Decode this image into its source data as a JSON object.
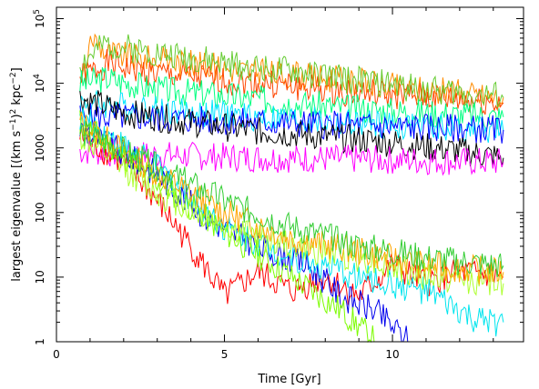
{
  "chart_data": {
    "type": "line",
    "xlabel": "Time [Gyr]",
    "ylabel_parts": {
      "pre": "largest eigenvalue [(km s",
      "exp1": "−1",
      "mid": ")",
      "exp2": "2",
      "mid2": " kpc",
      "exp3": "−2",
      "post": "]"
    },
    "xlim": [
      0,
      13.9
    ],
    "ylim": [
      1,
      150000
    ],
    "yscale": "log",
    "x_ticks": [
      {
        "value": 0,
        "label": "0"
      },
      {
        "value": 5,
        "label": "5"
      },
      {
        "value": 10,
        "label": "10"
      }
    ],
    "y_ticks": [
      {
        "value": 1,
        "label": "1"
      },
      {
        "value": 10,
        "label": "10"
      },
      {
        "value": 100,
        "label": "100"
      },
      {
        "value": 1000,
        "label": "1000"
      },
      {
        "value": 10000,
        "label": "10",
        "exp": "4"
      },
      {
        "value": 100000,
        "label": "10",
        "exp": "5"
      }
    ],
    "grid": false,
    "legend": "none",
    "series": [
      {
        "color": "#ff8c00",
        "x": [
          0.7,
          1.1,
          1.5,
          2.5,
          4,
          6,
          8,
          10,
          12,
          13.3
        ],
        "y": [
          8000,
          50000,
          30000,
          25000,
          20000,
          15000,
          12000,
          9000,
          7000,
          6000
        ]
      },
      {
        "color": "#ff4500",
        "x": [
          0.7,
          1.5,
          3,
          5,
          7,
          9,
          11,
          13.3
        ],
        "y": [
          12000,
          20000,
          14000,
          11000,
          9000,
          7000,
          6000,
          5000
        ]
      },
      {
        "color": "#66cc33",
        "x": [
          0.7,
          1.5,
          3,
          5,
          7,
          9,
          11,
          13.3
        ],
        "y": [
          20000,
          40000,
          30000,
          20000,
          15000,
          11000,
          8000,
          6000
        ]
      },
      {
        "color": "#00ff7f",
        "x": [
          0.7,
          1.5,
          3,
          5,
          7,
          9,
          11,
          13.3
        ],
        "y": [
          10000,
          12000,
          8000,
          6500,
          5000,
          4000,
          3500,
          3000
        ]
      },
      {
        "color": "#00e5ff",
        "x": [
          0.7,
          2,
          4,
          6,
          8,
          10,
          12,
          13.3
        ],
        "y": [
          5000,
          4500,
          3500,
          3000,
          2500,
          2200,
          2000,
          1800
        ]
      },
      {
        "color": "#0000ff",
        "x": [
          0.7,
          2,
          4,
          6,
          8,
          10,
          12,
          13.3
        ],
        "y": [
          3000,
          3000,
          2700,
          2500,
          2300,
          2100,
          2000,
          1900
        ]
      },
      {
        "color": "#000000",
        "x": [
          0.7,
          2,
          4,
          6,
          8,
          10,
          12,
          13.3
        ],
        "y": [
          6000,
          3500,
          2500,
          1800,
          1500,
          1200,
          900,
          700
        ]
      },
      {
        "color": "#ff00ff",
        "x": [
          0.7,
          2,
          4,
          6,
          8,
          10,
          12,
          13.3
        ],
        "y": [
          900,
          800,
          750,
          700,
          680,
          650,
          620,
          600
        ]
      },
      {
        "color": "#ff0000",
        "x": [
          0.7,
          2,
          3,
          4,
          5,
          6,
          7,
          8,
          9,
          10,
          11,
          12,
          13.3
        ],
        "y": [
          1500,
          600,
          150,
          30,
          5,
          12,
          6,
          10,
          5,
          15,
          8,
          12,
          10
        ]
      },
      {
        "color": "#0000ee",
        "x": [
          0.7,
          3,
          4.5,
          6,
          7.5,
          8.5,
          9.5,
          10.5
        ],
        "y": [
          2000,
          400,
          80,
          30,
          15,
          5,
          3,
          1
        ]
      },
      {
        "color": "#00e5ee",
        "x": [
          0.7,
          3,
          5,
          7,
          9,
          11,
          12.5,
          13.3
        ],
        "y": [
          3000,
          500,
          60,
          20,
          10,
          6,
          2,
          2
        ]
      },
      {
        "color": "#7cfc00",
        "x": [
          0.7,
          3,
          5,
          7,
          8.5,
          9.5
        ],
        "y": [
          2500,
          300,
          50,
          10,
          3,
          1
        ]
      },
      {
        "color": "#adff2f",
        "x": [
          0.7,
          3,
          5,
          7,
          9,
          11,
          13.3
        ],
        "y": [
          1500,
          200,
          60,
          30,
          20,
          10,
          8
        ]
      },
      {
        "color": "#ffa500",
        "x": [
          0.7,
          3,
          5,
          7,
          9,
          11,
          13.3
        ],
        "y": [
          2500,
          400,
          100,
          40,
          25,
          15,
          12
        ]
      },
      {
        "color": "#32cd32",
        "x": [
          0.7,
          3,
          5,
          7,
          9,
          11,
          13.3
        ],
        "y": [
          1800,
          500,
          150,
          60,
          30,
          20,
          15
        ]
      }
    ]
  }
}
